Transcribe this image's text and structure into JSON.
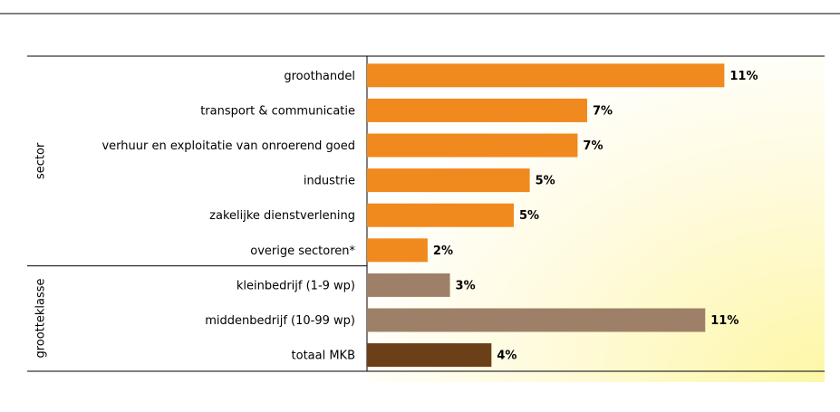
{
  "chart_data": {
    "type": "bar",
    "categories": [
      "groothandel",
      "transport & communicatie",
      "verhuur en exploitatie van onroerend goed",
      "industrie",
      "zakelijke dienstverlening",
      "overige sectoren*",
      "kleinbedrijf (1-9 wp)",
      "middenbedrijf (10-99 wp)",
      "totaal MKB"
    ],
    "values": [
      11.2,
      6.9,
      6.6,
      5.1,
      4.6,
      1.9,
      2.6,
      10.6,
      3.9
    ],
    "value_labels": [
      "11%",
      "7%",
      "7%",
      "5%",
      "5%",
      "2%",
      "3%",
      "11%",
      "4%"
    ],
    "colors": [
      "#f0891e",
      "#f0891e",
      "#f0891e",
      "#f0891e",
      "#f0891e",
      "#f0891e",
      "#9e8068",
      "#9e8068",
      "#6b3f17"
    ],
    "groups": [
      {
        "name": "sector",
        "start": 0,
        "count": 6
      },
      {
        "name": "grootteklasse",
        "start": 6,
        "count": 3
      }
    ],
    "xlim": [
      0,
      14
    ]
  }
}
